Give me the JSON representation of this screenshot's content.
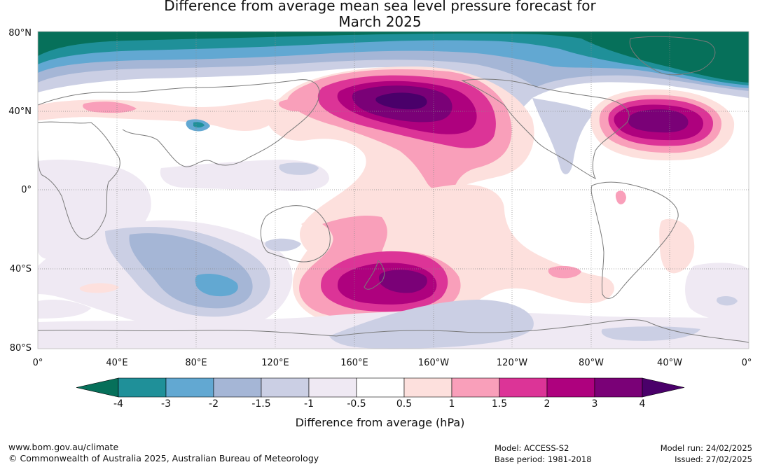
{
  "title": {
    "line1": "Difference from average mean sea level pressure forecast for",
    "line2": "March 2025"
  },
  "lat_ticks": [
    "80°N",
    "40°N",
    "0°",
    "40°S",
    "80°S"
  ],
  "lon_ticks": [
    "0°",
    "40°E",
    "80°E",
    "120°E",
    "160°E",
    "160°W",
    "120°W",
    "80°W",
    "40°W",
    "0°"
  ],
  "colorbar": {
    "labels": [
      "-4",
      "-3",
      "-2",
      "-1.5",
      "-1",
      "-0.5",
      "0.5",
      "1",
      "1.5",
      "2",
      "3",
      "4"
    ],
    "colors": [
      "#06705a",
      "#1f9099",
      "#62a8d2",
      "#a5b6d6",
      "#cbcfe4",
      "#efe9f3",
      "#ffffff",
      "#fde0dd",
      "#f99fba",
      "#dc3497",
      "#ae017e",
      "#7a0177",
      "#4a006a"
    ],
    "title": "Difference from average (hPa)"
  },
  "footer": {
    "website": "www.bom.gov.au/climate",
    "copyright": "© Commonwealth of Australia 2025, Australian Bureau of Meteorology",
    "model": "Model: ACCESS-S2",
    "base_period": "Base period: 1981-2018",
    "model_run": "Model run: 24/02/2025",
    "issued": "Issued: 27/02/2025"
  }
}
